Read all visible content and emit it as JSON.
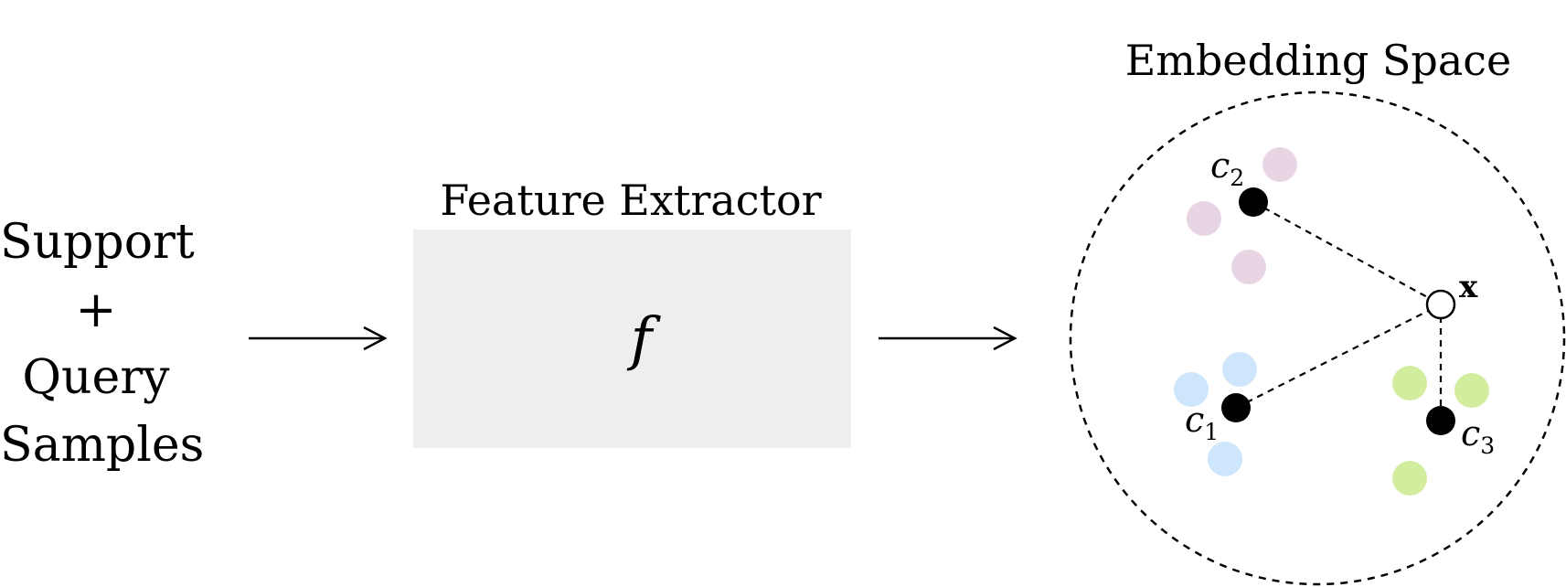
{
  "input": {
    "line1": "Support",
    "line2": "+",
    "line3": "Query",
    "line4": "Samples"
  },
  "extractor": {
    "title": "Feature Extractor",
    "symbol": "f",
    "box_color": "#eeeeee"
  },
  "embedding": {
    "title": "Embedding Space",
    "centroids": [
      {
        "name": "c",
        "sub": "1"
      },
      {
        "name": "c",
        "sub": "2"
      },
      {
        "name": "c",
        "sub": "3"
      }
    ],
    "query_label": "x",
    "class_colors": {
      "class1": "#cde6fb",
      "class2": "#e8d5e3",
      "class3": "#d3ed9e"
    }
  }
}
